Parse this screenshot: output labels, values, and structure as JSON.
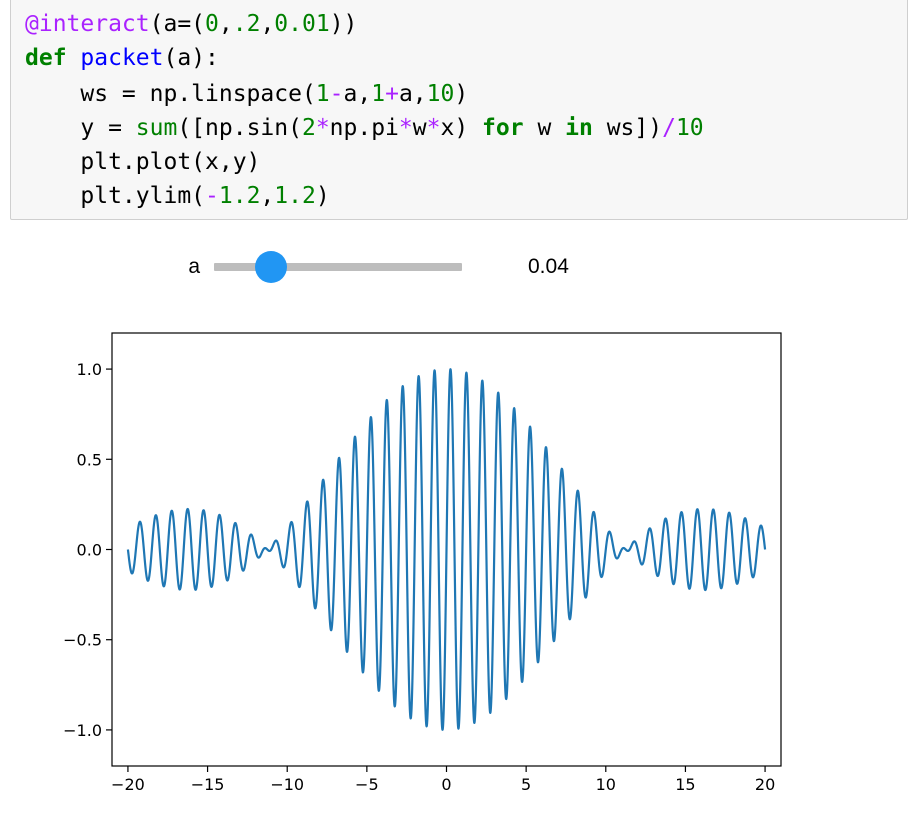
{
  "code": {
    "lines": [
      [
        [
          "tok-deco",
          "@interact"
        ],
        [
          "tok-txt",
          "(a=("
        ],
        [
          "tok-num",
          "0"
        ],
        [
          "tok-txt",
          ","
        ],
        [
          "tok-num",
          ".2"
        ],
        [
          "tok-txt",
          ","
        ],
        [
          "tok-num",
          "0.01"
        ],
        [
          "tok-txt",
          "))"
        ]
      ],
      [
        [
          "tok-kw",
          "def"
        ],
        [
          "tok-txt",
          " "
        ],
        [
          "tok-fn",
          "packet"
        ],
        [
          "tok-txt",
          "(a):"
        ]
      ],
      [
        [
          "tok-txt",
          "    ws = np.linspace("
        ],
        [
          "tok-num",
          "1"
        ],
        [
          "tok-op",
          "-"
        ],
        [
          "tok-txt",
          "a,"
        ],
        [
          "tok-num",
          "1"
        ],
        [
          "tok-op",
          "+"
        ],
        [
          "tok-txt",
          "a,"
        ],
        [
          "tok-num",
          "10"
        ],
        [
          "tok-txt",
          ")"
        ]
      ],
      [
        [
          "tok-txt",
          "    y = "
        ],
        [
          "tok-bi",
          "sum"
        ],
        [
          "tok-txt",
          "([np.sin("
        ],
        [
          "tok-num",
          "2"
        ],
        [
          "tok-op",
          "*"
        ],
        [
          "tok-txt",
          "np.pi"
        ],
        [
          "tok-op",
          "*"
        ],
        [
          "tok-txt",
          "w"
        ],
        [
          "tok-op",
          "*"
        ],
        [
          "tok-txt",
          "x) "
        ],
        [
          "tok-kw",
          "for"
        ],
        [
          "tok-txt",
          " w "
        ],
        [
          "tok-kw",
          "in"
        ],
        [
          "tok-txt",
          " ws])"
        ],
        [
          "tok-op",
          "/"
        ],
        [
          "tok-num",
          "10"
        ]
      ],
      [
        [
          "tok-txt",
          "    plt.plot(x,y)"
        ]
      ],
      [
        [
          "tok-txt",
          "    plt.ylim("
        ],
        [
          "tok-op",
          "-"
        ],
        [
          "tok-num",
          "1.2"
        ],
        [
          "tok-txt",
          ","
        ],
        [
          "tok-num",
          "1.2"
        ],
        [
          "tok-txt",
          ")"
        ]
      ]
    ]
  },
  "slider": {
    "label": "a",
    "min": 0,
    "max": 0.2,
    "step": 0.01,
    "value": 0.04,
    "value_text": "0.04",
    "thumb_color": "#2196f3",
    "track_color": "#bdbdbd"
  },
  "chart_data": {
    "type": "line",
    "title": "",
    "xlabel": "",
    "ylabel": "",
    "xlim": [
      -21.0,
      21.0
    ],
    "ylim": [
      -1.2,
      1.2
    ],
    "xticks": [
      -20,
      -15,
      -10,
      -5,
      0,
      5,
      10,
      15,
      20
    ],
    "xtick_labels": [
      "−20",
      "−15",
      "−10",
      "−5",
      "0",
      "5",
      "10",
      "15",
      "20"
    ],
    "yticks": [
      -1.0,
      -0.5,
      0.0,
      0.5,
      1.0
    ],
    "ytick_labels": [
      "−1.0",
      "−0.5",
      "0.0",
      "0.5",
      "1.0"
    ],
    "grid": false,
    "series": [
      {
        "line_color": "#1f77b4",
        "x_range": [
          -20,
          20
        ],
        "n_components": 10,
        "freq_min": 0.96,
        "freq_max": 1.04,
        "y_formula": "sum(sin(2*pi*w*x) for w in linspace(0.96,1.04,10))/10"
      }
    ]
  }
}
